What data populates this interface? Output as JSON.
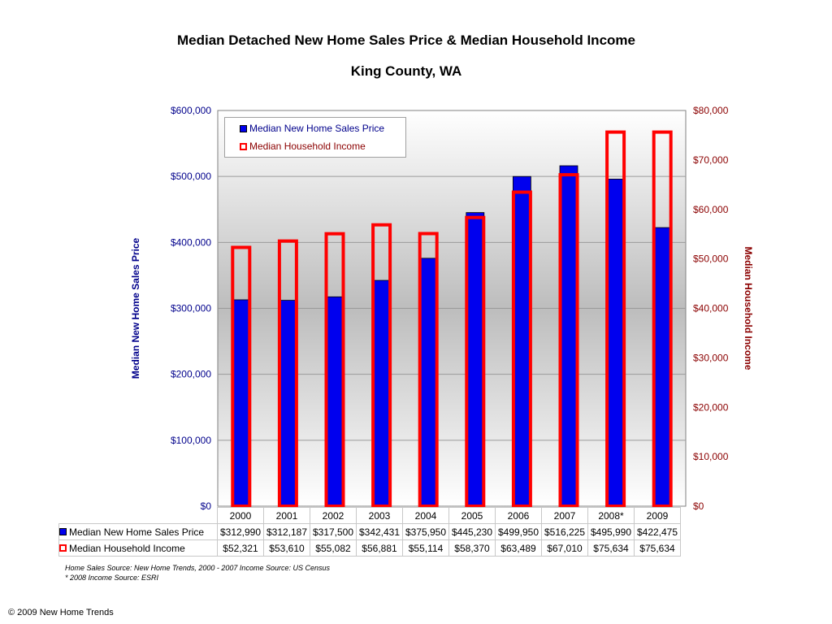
{
  "chart_data": {
    "type": "bar",
    "title": "Median Detached New Home Sales Price & Median Household Income",
    "subtitle": "King County, WA",
    "categories": [
      "2000",
      "2001",
      "2002",
      "2003",
      "2004",
      "2005",
      "2006",
      "2007",
      "2008*",
      "2009"
    ],
    "series": [
      {
        "name": "Median New Home Sales Price",
        "axis": "left",
        "style": "filled-bar",
        "color": "#0000ee",
        "values": [
          312990,
          312187,
          317500,
          342431,
          375950,
          445230,
          499950,
          516225,
          495990,
          422475
        ],
        "labels": [
          "$312,990",
          "$312,187",
          "$317,500",
          "$342,431",
          "$375,950",
          "$445,230",
          "$499,950",
          "$516,225",
          "$495,990",
          "$422,475"
        ]
      },
      {
        "name": "Median Household Income",
        "axis": "right",
        "style": "hollow-bar",
        "color": "#ff0000",
        "values": [
          52321,
          53610,
          55082,
          56881,
          55114,
          58370,
          63489,
          67010,
          75634,
          75634
        ],
        "labels": [
          "$52,321",
          "$53,610",
          "$55,082",
          "$56,881",
          "$55,114",
          "$58,370",
          "$63,489",
          "$67,010",
          "$75,634",
          "$75,634"
        ]
      }
    ],
    "ylabel": "Median New Home Sales Price",
    "ylabel_color": "#00008b",
    "ylim": [
      0,
      600000
    ],
    "yticks": [
      "$0",
      "$100,000",
      "$200,000",
      "$300,000",
      "$400,000",
      "$500,000",
      "$600,000"
    ],
    "y2label": "Median Household Income",
    "y2label_color": "#8b0000",
    "y2lim": [
      0,
      80000
    ],
    "y2ticks": [
      "$0",
      "$10,000",
      "$20,000",
      "$30,000",
      "$40,000",
      "$50,000",
      "$60,000",
      "$70,000",
      "$80,000"
    ],
    "grid": true,
    "legend_position": "top-left"
  },
  "notes": [
    "Home Sales Source: New Home Trends, 2000 - 2007 Income Source: US Census",
    "* 2008 Income Source: ESRI"
  ],
  "copyright": "© 2009 New Home Trends"
}
